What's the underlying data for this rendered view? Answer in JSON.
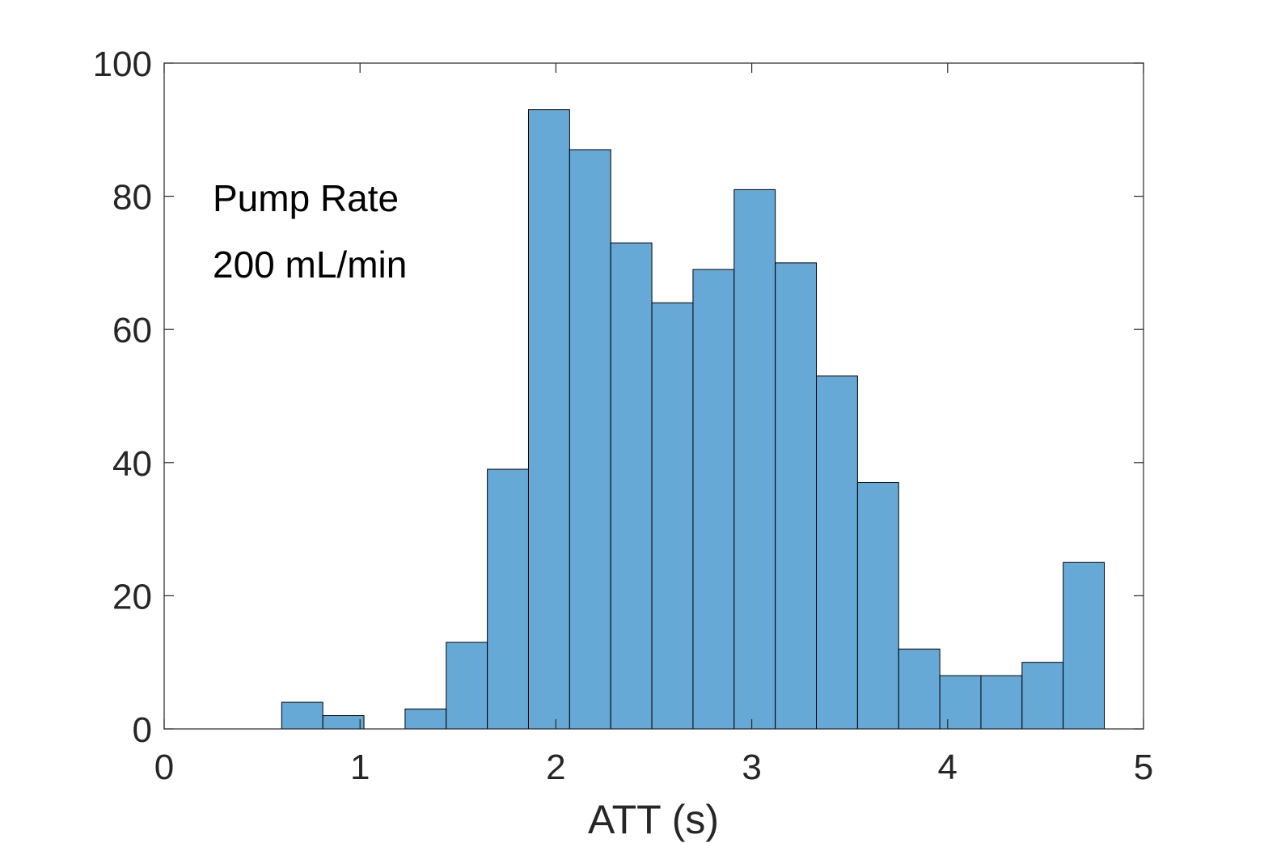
{
  "chart_data": {
    "type": "bar",
    "histogram": true,
    "bin_edges": [
      0.6,
      0.81,
      1.02,
      1.23,
      1.44,
      1.65,
      1.86,
      2.07,
      2.28,
      2.49,
      2.7,
      2.91,
      3.12,
      3.33,
      3.54,
      3.75,
      3.96,
      4.17,
      4.38,
      4.59,
      4.8
    ],
    "values": [
      4,
      2,
      0,
      3,
      13,
      39,
      93,
      87,
      73,
      64,
      69,
      81,
      70,
      53,
      37,
      12,
      8,
      8,
      10,
      25
    ],
    "xlabel": "ATT (s)",
    "ylabel": "",
    "xlim": [
      0,
      5
    ],
    "ylim": [
      0,
      100
    ],
    "xticks": [
      0,
      1,
      2,
      3,
      4,
      5
    ],
    "yticks": [
      0,
      20,
      40,
      60,
      80,
      100
    ],
    "grid": false,
    "annotations": [
      "Pump Rate",
      "200 mL/min"
    ],
    "colors": {
      "bar_fill": "#67a9d6",
      "bar_edge": "#000000",
      "axis": "#262626"
    }
  }
}
